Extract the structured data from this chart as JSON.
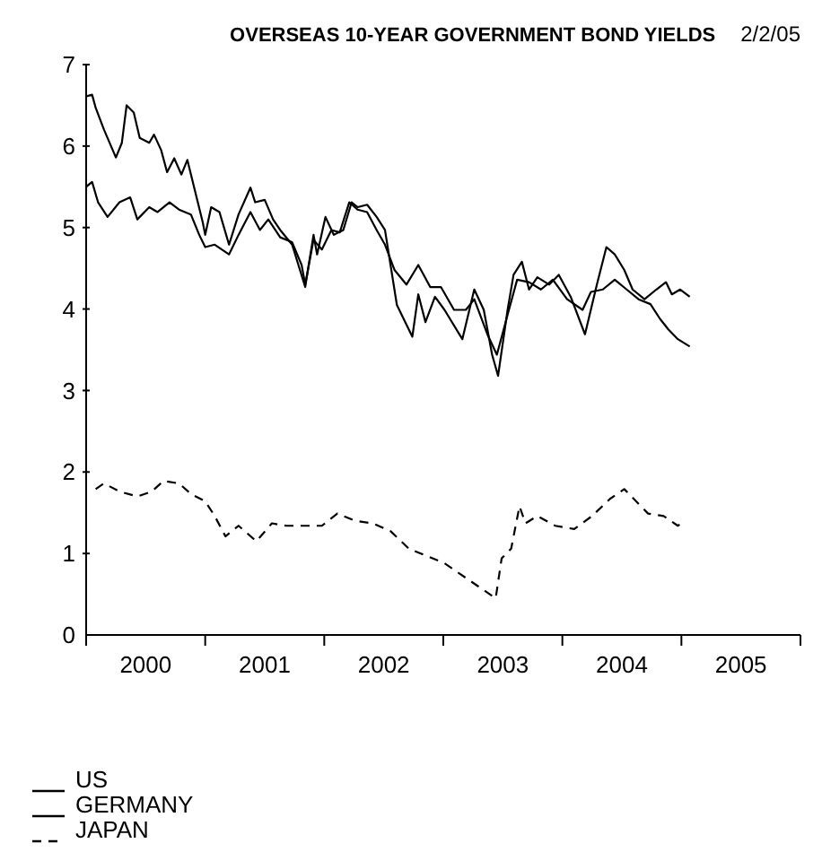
{
  "chart_data": {
    "type": "line",
    "title": "OVERSEAS 10-YEAR GOVERNMENT BOND YIELDS",
    "subtitle": "2/2/05",
    "xlim": [
      2000,
      2006
    ],
    "xticks": [
      {
        "value": 2000,
        "label": null
      },
      {
        "value": 2001,
        "label": null
      },
      {
        "value": 2002,
        "label": null
      },
      {
        "value": 2003,
        "label": null
      },
      {
        "value": 2004,
        "label": null
      },
      {
        "value": 2005,
        "label": null
      },
      {
        "value": 2006,
        "label": null
      },
      {
        "value": 2000.5,
        "label": "2000"
      },
      {
        "value": 2001.5,
        "label": "2001"
      },
      {
        "value": 2002.5,
        "label": "2002"
      },
      {
        "value": 2003.5,
        "label": "2003"
      },
      {
        "value": 2004.5,
        "label": "2004"
      },
      {
        "value": 2005.5,
        "label": "2005"
      }
    ],
    "ylim": [
      0,
      7
    ],
    "yticks": [
      0,
      1,
      2,
      3,
      4,
      5,
      6,
      7
    ],
    "grid": false,
    "legend": "bottom left",
    "marker": "none",
    "series": [
      {
        "name": "US",
        "color": "#000000",
        "line_style": "solid",
        "x": [
          2000.0,
          2000.05,
          2000.08,
          2000.15,
          2000.25,
          2000.3,
          2000.34,
          2000.4,
          2000.45,
          2000.53,
          2000.57,
          2000.63,
          2000.68,
          2000.74,
          2000.8,
          2000.85,
          2000.98,
          2001.0,
          2001.05,
          2001.12,
          2001.2,
          2001.28,
          2001.38,
          2001.42,
          2001.5,
          2001.57,
          2001.63,
          2001.73,
          2001.84,
          2001.91,
          2001.94,
          2002.01,
          2002.08,
          2002.16,
          2002.23,
          2002.28,
          2002.36,
          2002.44,
          2002.51,
          2002.61,
          2002.74,
          2002.79,
          2002.85,
          2002.93,
          2003.01,
          2003.16,
          2003.26,
          2003.34,
          2003.41,
          2003.46,
          2003.54,
          2003.59,
          2003.66,
          2003.72,
          2003.79,
          2003.89,
          2003.97,
          2004.07,
          2004.19,
          2004.29,
          2004.37,
          2004.44,
          2004.52,
          2004.59,
          2004.69,
          2004.79,
          2004.87,
          2004.92,
          2004.99,
          2005.07
        ],
        "values": [
          6.61,
          6.63,
          6.47,
          6.2,
          5.86,
          6.04,
          6.5,
          6.41,
          6.1,
          6.04,
          6.14,
          5.95,
          5.68,
          5.85,
          5.65,
          5.83,
          5.06,
          4.91,
          5.25,
          5.19,
          4.79,
          5.16,
          5.49,
          5.31,
          5.34,
          5.1,
          4.97,
          4.79,
          4.27,
          4.91,
          4.67,
          5.13,
          4.91,
          4.97,
          5.31,
          5.25,
          5.28,
          5.13,
          4.97,
          4.05,
          3.66,
          4.18,
          3.84,
          4.15,
          3.99,
          3.63,
          4.24,
          3.99,
          3.44,
          3.18,
          3.99,
          4.42,
          4.58,
          4.24,
          4.39,
          4.3,
          4.42,
          4.15,
          3.69,
          4.3,
          4.76,
          4.67,
          4.48,
          4.24,
          4.12,
          4.24,
          4.33,
          4.18,
          4.24,
          4.15
        ]
      },
      {
        "name": "GERMANY",
        "color": "#000000",
        "line_style": "solid",
        "x": [
          2000.0,
          2000.05,
          2000.1,
          2000.18,
          2000.28,
          2000.37,
          2000.43,
          2000.53,
          2000.6,
          2000.7,
          2000.78,
          2000.88,
          2000.95,
          2001.0,
          2001.08,
          2001.2,
          2001.28,
          2001.38,
          2001.46,
          2001.53,
          2001.63,
          2001.73,
          2001.81,
          2001.84,
          2001.91,
          2001.98,
          2002.06,
          2002.13,
          2002.21,
          2002.28,
          2002.36,
          2002.44,
          2002.51,
          2002.59,
          2002.69,
          2002.79,
          2002.89,
          2002.98,
          2003.09,
          2003.19,
          2003.26,
          2003.37,
          2003.45,
          2003.54,
          2003.62,
          2003.72,
          2003.82,
          2003.92,
          2004.04,
          2004.17,
          2004.24,
          2004.34,
          2004.44,
          2004.54,
          2004.64,
          2004.74,
          2004.82,
          2004.89,
          2004.97,
          2005.07
        ],
        "values": [
          5.5,
          5.56,
          5.31,
          5.13,
          5.31,
          5.37,
          5.1,
          5.25,
          5.19,
          5.31,
          5.22,
          5.16,
          4.91,
          4.76,
          4.79,
          4.67,
          4.91,
          5.19,
          4.97,
          5.1,
          4.88,
          4.82,
          4.54,
          4.3,
          4.85,
          4.73,
          4.97,
          4.94,
          5.31,
          5.22,
          5.19,
          4.97,
          4.79,
          4.48,
          4.3,
          4.54,
          4.27,
          4.27,
          3.99,
          3.99,
          4.12,
          3.69,
          3.44,
          3.93,
          4.36,
          4.33,
          4.24,
          4.36,
          4.12,
          3.99,
          4.21,
          4.24,
          4.36,
          4.24,
          4.12,
          4.06,
          3.88,
          3.75,
          3.63,
          3.54
        ]
      },
      {
        "name": "JAPAN",
        "color": "#000000",
        "line_style": "dashed",
        "x": [
          2000.08,
          2000.15,
          2000.28,
          2000.43,
          2000.55,
          2000.65,
          2000.78,
          2000.88,
          2001.0,
          2001.08,
          2001.17,
          2001.28,
          2001.43,
          2001.56,
          2001.68,
          2001.83,
          2001.98,
          2002.11,
          2002.26,
          2002.41,
          2002.56,
          2002.71,
          2002.86,
          2003.01,
          2003.14,
          2003.29,
          2003.44,
          2003.49,
          2003.57,
          2003.64,
          2003.69,
          2003.79,
          2003.94,
          2004.1,
          2004.25,
          2004.4,
          2004.52,
          2004.6,
          2004.72,
          2004.85,
          2004.97,
          2005.03
        ],
        "values": [
          1.79,
          1.86,
          1.76,
          1.7,
          1.76,
          1.89,
          1.86,
          1.73,
          1.64,
          1.46,
          1.21,
          1.34,
          1.15,
          1.37,
          1.34,
          1.34,
          1.34,
          1.49,
          1.4,
          1.37,
          1.27,
          1.06,
          0.97,
          0.88,
          0.75,
          0.6,
          0.45,
          0.94,
          1.06,
          1.58,
          1.37,
          1.46,
          1.34,
          1.3,
          1.46,
          1.67,
          1.79,
          1.67,
          1.49,
          1.46,
          1.34,
          1.4
        ]
      }
    ]
  }
}
